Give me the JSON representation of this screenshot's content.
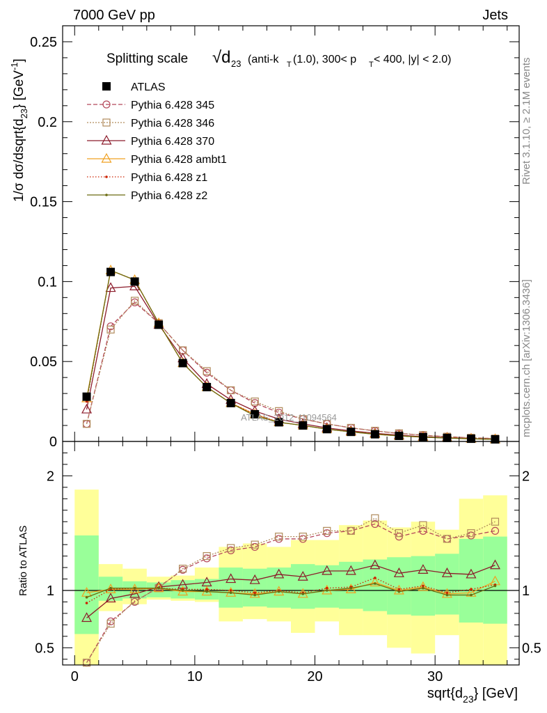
{
  "header": {
    "left": "7000 GeV pp",
    "right": "Jets"
  },
  "side_labels": {
    "right_top": "Rivet 3.1.10, ≥ 2.1M events",
    "right_bottom": "mcplots.cern.ch [arXiv:1306.3436]"
  },
  "watermark": "ATLAS_2012_I1094564",
  "chart_data": [
    {
      "type": "line",
      "panel": "main",
      "title_main": "Splitting scale",
      "title_symbol": "√d",
      "title_subscript": "23",
      "title_rest": "(anti-k",
      "title_sub_T": "T",
      "title_rest2": "(1.0), 300< p",
      "title_rest3": " < 400, |y| < 2.0)",
      "ylabel": "1/σ dσ/dsqrt{d",
      "ylabel_sub": "23",
      "ylabel_end": "} [GeV",
      "ylabel_sup": "-1",
      "ylabel_close": "]",
      "xlim": [
        -1,
        37
      ],
      "ylim": [
        0,
        0.26
      ],
      "yticks": [
        0,
        0.05,
        0.1,
        0.15,
        0.2,
        0.25
      ],
      "ytick_labels": [
        "0",
        "0.05",
        "0.1",
        "0.15",
        "0.2",
        "0.25"
      ],
      "legend_position": "top-left",
      "x": [
        1,
        3,
        5,
        7,
        9,
        11,
        13,
        15,
        17,
        19,
        21,
        23,
        25,
        27,
        29,
        31,
        33,
        35
      ],
      "series": [
        {
          "name": "ATLAS",
          "color": "#000000",
          "marker": "filled-square",
          "dash": "none",
          "values": [
            0.028,
            0.106,
            0.1,
            0.073,
            0.049,
            0.034,
            0.024,
            0.017,
            0.012,
            0.01,
            0.0077,
            0.006,
            0.0045,
            0.0035,
            0.0027,
            0.0022,
            0.0017,
            0.0013
          ]
        },
        {
          "name": "Pythia 6.428 345",
          "color": "#b5475a",
          "marker": "open-circle",
          "dash": "6,3",
          "values": [
            0.011,
            0.072,
            0.087,
            0.074,
            0.057,
            0.043,
            0.032,
            0.024,
            0.018,
            0.014,
            0.011,
            0.0085,
            0.0066,
            0.005,
            0.0039,
            0.003,
            0.0023,
            0.0018
          ]
        },
        {
          "name": "Pythia 6.428 346",
          "color": "#b08a5a",
          "marker": "open-square",
          "dash": "2,2",
          "values": [
            0.011,
            0.07,
            0.088,
            0.074,
            0.057,
            0.044,
            0.032,
            0.025,
            0.019,
            0.014,
            0.011,
            0.0085,
            0.0067,
            0.0051,
            0.004,
            0.003,
            0.0023,
            0.0018
          ]
        },
        {
          "name": "Pythia 6.428 370",
          "color": "#8b1a2a",
          "marker": "open-triangle",
          "dash": "none",
          "values": [
            0.02,
            0.096,
            0.097,
            0.073,
            0.052,
            0.036,
            0.026,
            0.019,
            0.014,
            0.011,
            0.0085,
            0.0066,
            0.0051,
            0.0039,
            0.003,
            0.0024,
            0.0018,
            0.0014
          ]
        },
        {
          "name": "Pythia 6.428 ambt1",
          "color": "#f0a020",
          "marker": "open-triangle",
          "dash": "none",
          "values": [
            0.027,
            0.107,
            0.101,
            0.074,
            0.049,
            0.034,
            0.024,
            0.017,
            0.012,
            0.01,
            0.0077,
            0.006,
            0.0046,
            0.0035,
            0.0027,
            0.0022,
            0.0017,
            0.0013
          ]
        },
        {
          "name": "Pythia 6.428 z1",
          "color": "#cc2200",
          "marker": "dot",
          "dash": "1.5,2.5",
          "values": [
            0.025,
            0.107,
            0.101,
            0.074,
            0.049,
            0.034,
            0.024,
            0.017,
            0.012,
            0.01,
            0.0077,
            0.006,
            0.0046,
            0.0035,
            0.0027,
            0.0022,
            0.0017,
            0.0013
          ]
        },
        {
          "name": "Pythia 6.428 z2",
          "color": "#6b6b10",
          "marker": "dot",
          "dash": "none",
          "values": [
            0.026,
            0.107,
            0.101,
            0.074,
            0.049,
            0.034,
            0.024,
            0.016,
            0.012,
            0.01,
            0.0077,
            0.006,
            0.0045,
            0.0035,
            0.0027,
            0.0021,
            0.0016,
            0.0013
          ]
        }
      ]
    },
    {
      "type": "line",
      "panel": "ratio",
      "xlabel": "sqrt{d",
      "xlabel_sub": "23",
      "xlabel_end": "} [GeV]",
      "ylabel": "Ratio to ATLAS",
      "xlim": [
        -1,
        37
      ],
      "ylim": [
        0.35,
        2.3
      ],
      "xticks": [
        0,
        10,
        20,
        30
      ],
      "xtick_labels": [
        "0",
        "10",
        "20",
        "30"
      ],
      "yticks": [
        0.5,
        1,
        2
      ],
      "ytick_labels": [
        "0.5",
        "1",
        "2"
      ],
      "x": [
        1,
        3,
        5,
        7,
        9,
        11,
        13,
        15,
        17,
        19,
        21,
        23,
        25,
        27,
        29,
        31,
        33,
        35
      ],
      "band_edges": [
        0,
        2,
        4,
        6,
        8,
        10,
        12,
        14,
        16,
        18,
        20,
        22,
        24,
        26,
        28,
        30,
        32,
        34,
        36
      ],
      "band_inner_low": [
        0.62,
        0.91,
        0.93,
        0.94,
        0.93,
        0.92,
        0.85,
        0.86,
        0.85,
        0.84,
        0.85,
        0.84,
        0.82,
        0.79,
        0.78,
        0.79,
        0.72,
        0.71
      ],
      "band_inner_high": [
        1.48,
        1.12,
        1.08,
        1.07,
        1.09,
        1.1,
        1.2,
        1.19,
        1.2,
        1.23,
        1.22,
        1.25,
        1.27,
        1.29,
        1.3,
        1.32,
        1.45,
        1.47
      ],
      "band_outer_low": [
        0.3,
        0.82,
        0.88,
        0.92,
        0.91,
        0.9,
        0.73,
        0.75,
        0.73,
        0.63,
        0.73,
        0.61,
        0.61,
        0.5,
        0.45,
        0.61,
        0.3,
        0.3
      ],
      "band_outer_high": [
        1.88,
        1.23,
        1.19,
        1.12,
        1.13,
        1.2,
        1.38,
        1.41,
        1.38,
        1.44,
        1.44,
        1.57,
        1.61,
        1.55,
        1.6,
        1.53,
        1.8,
        1.83
      ],
      "series": [
        {
          "name": "Pythia 6.428 345",
          "color": "#b5475a",
          "marker": "open-circle",
          "dash": "6,3",
          "values": [
            0.37,
            0.73,
            0.9,
            1.03,
            1.18,
            1.28,
            1.35,
            1.38,
            1.45,
            1.45,
            1.5,
            1.52,
            1.58,
            1.47,
            1.52,
            1.45,
            1.48,
            1.52
          ]
        },
        {
          "name": "Pythia 6.428 346",
          "color": "#b08a5a",
          "marker": "open-square",
          "dash": "2,2",
          "values": [
            0.37,
            0.71,
            0.91,
            1.02,
            1.19,
            1.3,
            1.37,
            1.4,
            1.47,
            1.47,
            1.52,
            1.52,
            1.63,
            1.5,
            1.57,
            1.45,
            1.5,
            1.6
          ]
        },
        {
          "name": "Pythia 6.428 370",
          "color": "#8b1a2a",
          "marker": "open-triangle",
          "dash": "none",
          "values": [
            0.76,
            0.93,
            0.97,
            1.03,
            1.05,
            1.07,
            1.1,
            1.09,
            1.14,
            1.12,
            1.17,
            1.17,
            1.22,
            1.15,
            1.18,
            1.15,
            1.14,
            1.22
          ]
        },
        {
          "name": "Pythia 6.428 ambt1",
          "color": "#f0a020",
          "marker": "open-triangle",
          "dash": "none",
          "values": [
            0.98,
            1.01,
            1.01,
            1.02,
            0.99,
            0.99,
            0.98,
            0.97,
            0.99,
            0.97,
            1.0,
            1.01,
            1.07,
            1.0,
            1.03,
            0.97,
            0.98,
            1.08
          ]
        },
        {
          "name": "Pythia 6.428 z1",
          "color": "#cc2200",
          "marker": "dot",
          "dash": "1.5,2.5",
          "values": [
            0.89,
            1.01,
            1.02,
            1.02,
            1.01,
            1.01,
            1.0,
            0.98,
            1.0,
            0.98,
            1.02,
            1.03,
            1.11,
            1.01,
            1.04,
            0.98,
            1.01,
            1.05
          ]
        },
        {
          "name": "Pythia 6.428 z2",
          "color": "#6b6b10",
          "marker": "dot",
          "dash": "none",
          "values": [
            0.94,
            1.02,
            1.02,
            1.02,
            1.0,
            0.99,
            0.98,
            0.96,
            0.99,
            0.97,
            1.0,
            1.02,
            1.06,
            0.99,
            1.02,
            0.96,
            0.96,
            1.04
          ]
        }
      ]
    }
  ]
}
